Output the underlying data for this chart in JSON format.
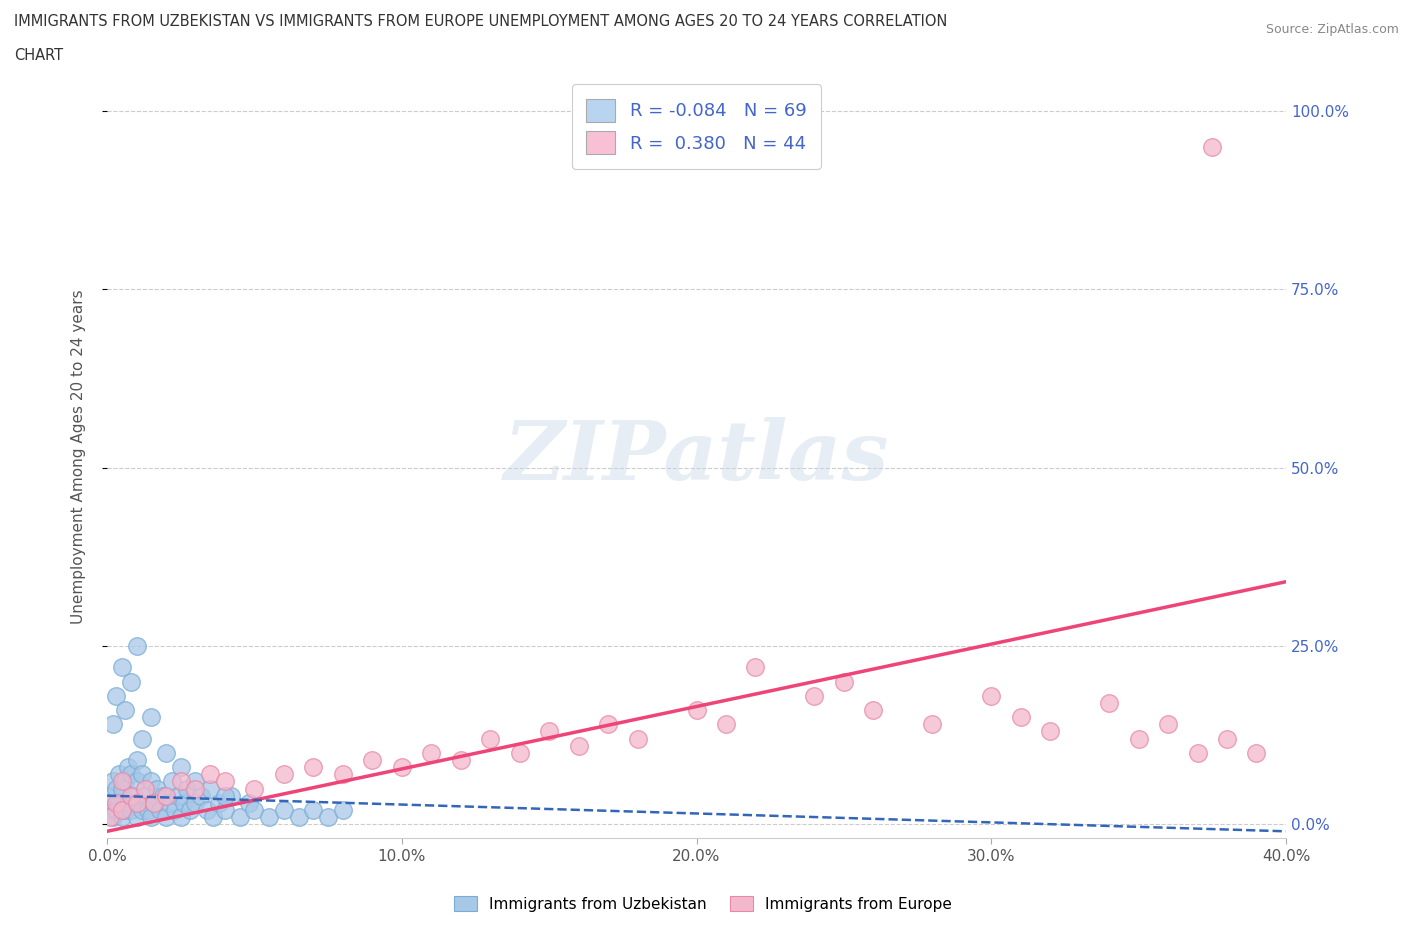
{
  "title_line1": "IMMIGRANTS FROM UZBEKISTAN VS IMMIGRANTS FROM EUROPE UNEMPLOYMENT AMONG AGES 20 TO 24 YEARS CORRELATION",
  "title_line2": "CHART",
  "source_text": "Source: ZipAtlas.com",
  "ylabel": "Unemployment Among Ages 20 to 24 years",
  "xlim": [
    0.0,
    0.4
  ],
  "ylim": [
    -0.02,
    1.05
  ],
  "yticks": [
    0.0,
    0.25,
    0.5,
    0.75,
    1.0
  ],
  "ytick_labels_right": [
    "0.0%",
    "25.0%",
    "50.0%",
    "75.0%",
    "100.0%"
  ],
  "xticks": [
    0.0,
    0.1,
    0.2,
    0.3,
    0.4
  ],
  "xtick_labels": [
    "0.0%",
    "10.0%",
    "20.0%",
    "30.0%",
    "40.0%"
  ],
  "watermark_text": "ZIPatlas",
  "uzbekistan_color": "#a8c8e8",
  "uzbekistan_edge_color": "#7aadd4",
  "europe_color": "#f4b8cc",
  "europe_edge_color": "#e888aa",
  "uzbekistan_line_color": "#3366bb",
  "europe_line_color": "#ee4477",
  "legend_box_uz_color": "#b8d4f0",
  "legend_box_eu_color": "#f8c0d4",
  "legend_R_uz": "-0.084",
  "legend_N_uz": "69",
  "legend_R_eu": "0.380",
  "legend_N_eu": "44",
  "legend_text_color": "#4466cc",
  "label_uz": "Immigrants from Uzbekistan",
  "label_eu": "Immigrants from Europe",
  "uz_x": [
    0.001,
    0.001,
    0.002,
    0.002,
    0.003,
    0.003,
    0.004,
    0.004,
    0.005,
    0.005,
    0.006,
    0.006,
    0.007,
    0.007,
    0.008,
    0.008,
    0.009,
    0.01,
    0.01,
    0.01,
    0.011,
    0.012,
    0.012,
    0.013,
    0.014,
    0.015,
    0.015,
    0.016,
    0.017,
    0.018,
    0.019,
    0.02,
    0.021,
    0.022,
    0.023,
    0.024,
    0.025,
    0.026,
    0.027,
    0.028,
    0.03,
    0.032,
    0.034,
    0.036,
    0.038,
    0.04,
    0.042,
    0.045,
    0.048,
    0.05,
    0.055,
    0.06,
    0.065,
    0.07,
    0.075,
    0.08,
    0.002,
    0.003,
    0.005,
    0.006,
    0.008,
    0.01,
    0.012,
    0.015,
    0.02,
    0.025,
    0.03,
    0.035,
    0.04
  ],
  "uz_y": [
    0.02,
    0.04,
    0.01,
    0.06,
    0.02,
    0.05,
    0.03,
    0.07,
    0.01,
    0.05,
    0.02,
    0.06,
    0.03,
    0.08,
    0.02,
    0.07,
    0.04,
    0.01,
    0.06,
    0.09,
    0.03,
    0.02,
    0.07,
    0.04,
    0.02,
    0.01,
    0.06,
    0.03,
    0.05,
    0.02,
    0.04,
    0.01,
    0.03,
    0.06,
    0.02,
    0.04,
    0.01,
    0.03,
    0.05,
    0.02,
    0.03,
    0.04,
    0.02,
    0.01,
    0.03,
    0.02,
    0.04,
    0.01,
    0.03,
    0.02,
    0.01,
    0.02,
    0.01,
    0.02,
    0.01,
    0.02,
    0.14,
    0.18,
    0.22,
    0.16,
    0.2,
    0.25,
    0.12,
    0.15,
    0.1,
    0.08,
    0.06,
    0.05,
    0.04
  ],
  "eu_x": [
    0.001,
    0.003,
    0.005,
    0.008,
    0.01,
    0.013,
    0.016,
    0.02,
    0.025,
    0.03,
    0.035,
    0.04,
    0.05,
    0.06,
    0.07,
    0.08,
    0.09,
    0.1,
    0.11,
    0.12,
    0.13,
    0.14,
    0.15,
    0.16,
    0.17,
    0.18,
    0.2,
    0.21,
    0.22,
    0.24,
    0.25,
    0.26,
    0.28,
    0.3,
    0.31,
    0.32,
    0.34,
    0.35,
    0.36,
    0.37,
    0.38,
    0.39,
    0.005,
    0.375
  ],
  "eu_y": [
    0.01,
    0.03,
    0.02,
    0.04,
    0.03,
    0.05,
    0.03,
    0.04,
    0.06,
    0.05,
    0.07,
    0.06,
    0.05,
    0.07,
    0.08,
    0.07,
    0.09,
    0.08,
    0.1,
    0.09,
    0.12,
    0.1,
    0.13,
    0.11,
    0.14,
    0.12,
    0.16,
    0.14,
    0.22,
    0.18,
    0.2,
    0.16,
    0.14,
    0.18,
    0.15,
    0.13,
    0.17,
    0.12,
    0.14,
    0.1,
    0.12,
    0.1,
    0.06,
    0.95
  ],
  "eu_line_x0": 0.0,
  "eu_line_x1": 0.4,
  "eu_line_y0": -0.01,
  "eu_line_y1": 0.34,
  "uz_line_x0": 0.0,
  "uz_line_x1": 0.4,
  "uz_line_y0": 0.04,
  "uz_line_y1": -0.01
}
